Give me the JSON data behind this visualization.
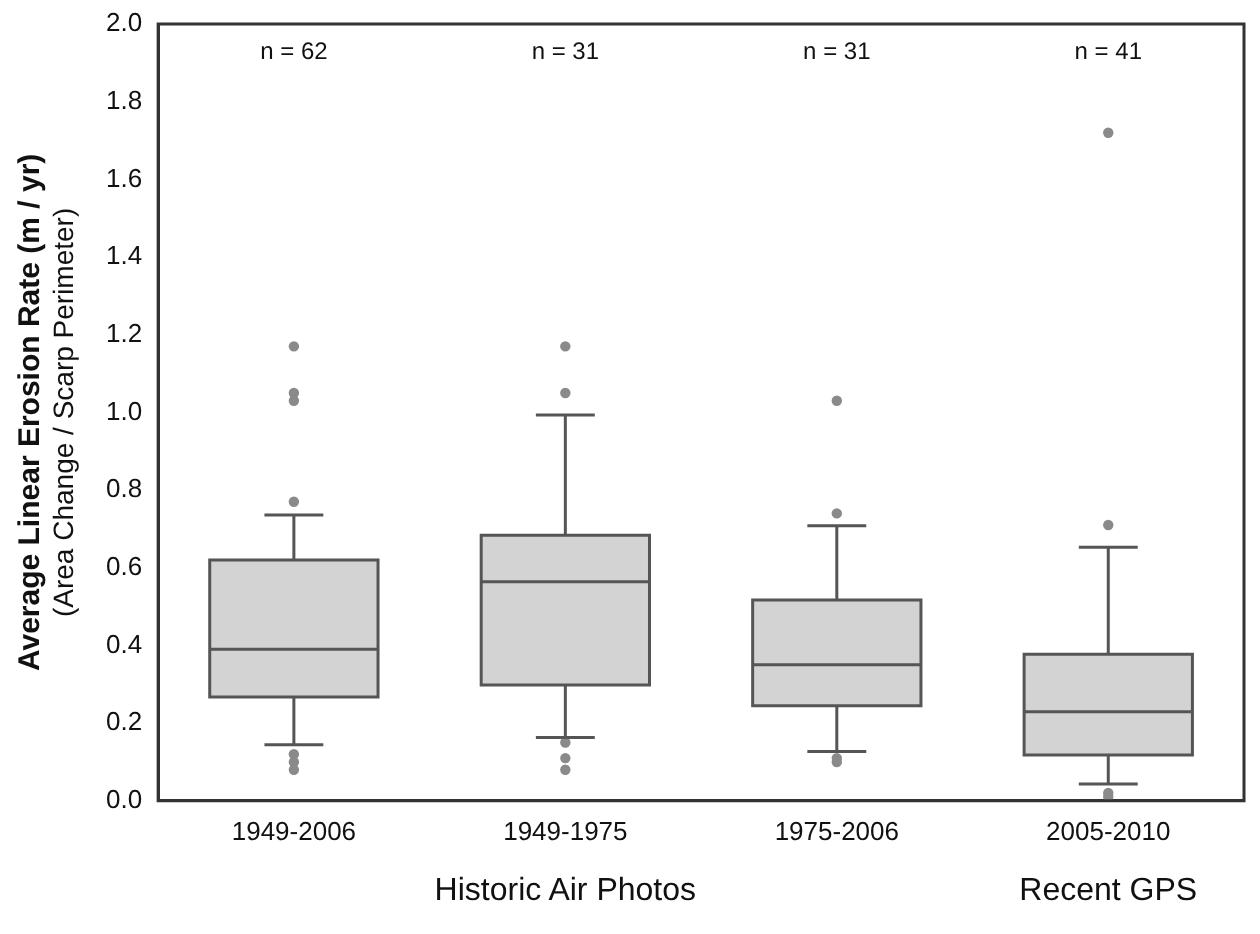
{
  "chart_data": {
    "type": "box",
    "ylabel": "Average Linear Erosion Rate (m / yr)\n(Area Change / Scarp Perimeter)",
    "categories": [
      "1949-2006",
      "1949-1975",
      "1975-2006",
      "2005-2010"
    ],
    "color": "#d3d3d3",
    "boxes": [
      {
        "low": 0.144,
        "q1": 0.267,
        "median": 0.39,
        "q3": 0.62,
        "high": 0.736,
        "outliers": [
          1.17,
          1.05,
          1.03,
          0.77,
          0.12,
          0.1,
          0.08
        ]
      },
      {
        "low": 0.163,
        "q1": 0.298,
        "median": 0.564,
        "q3": 0.684,
        "high": 0.993,
        "outliers": [
          1.17,
          1.05,
          0.15,
          0.11,
          0.08
        ]
      },
      {
        "low": 0.127,
        "q1": 0.245,
        "median": 0.35,
        "q3": 0.517,
        "high": 0.708,
        "outliers": [
          1.03,
          0.74,
          0.11,
          0.1
        ]
      },
      {
        "low": 0.043,
        "q1": 0.118,
        "median": 0.229,
        "q3": 0.377,
        "high": 0.653,
        "outliers": [
          1.72,
          0.71,
          0.02,
          0.01
        ]
      }
    ],
    "ylim": [
      0,
      2
    ],
    "yticks": [
      {
        "value": 0,
        "label": "0.0"
      },
      0.2,
      0.4,
      0.6,
      0.8,
      {
        "value": 1,
        "label": "1.0"
      },
      1.2,
      1.4,
      1.6,
      1.8,
      {
        "value": 2,
        "label": "2.0"
      }
    ],
    "grid": false,
    "legend": false,
    "annotations": [
      "n = 62",
      "n = 31",
      "n = 31",
      "n = 41",
      "Historic Air Photos",
      "Recent GPS"
    ]
  }
}
